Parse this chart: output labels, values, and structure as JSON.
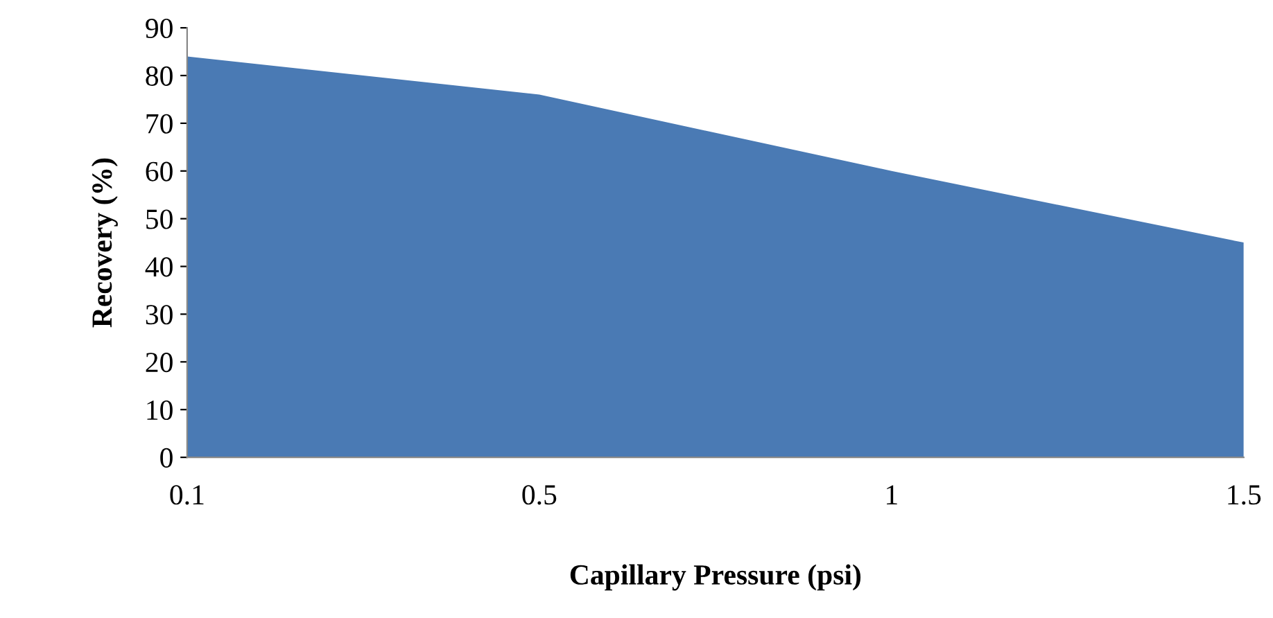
{
  "chart_data": {
    "type": "area",
    "xlabel": "Capillary Pressure (psi)",
    "ylabel": "Recovery (%)",
    "categories": [
      "0.1",
      "0.5",
      "1",
      "1.5"
    ],
    "series": [
      {
        "color": "#4a7ab4",
        "values": [
          84,
          76,
          60,
          45
        ]
      }
    ],
    "ylim": [
      0,
      90
    ],
    "yticks": [
      0,
      10,
      20,
      30,
      40,
      50,
      60,
      70,
      80,
      90
    ],
    "grid": false,
    "legend": false
  }
}
